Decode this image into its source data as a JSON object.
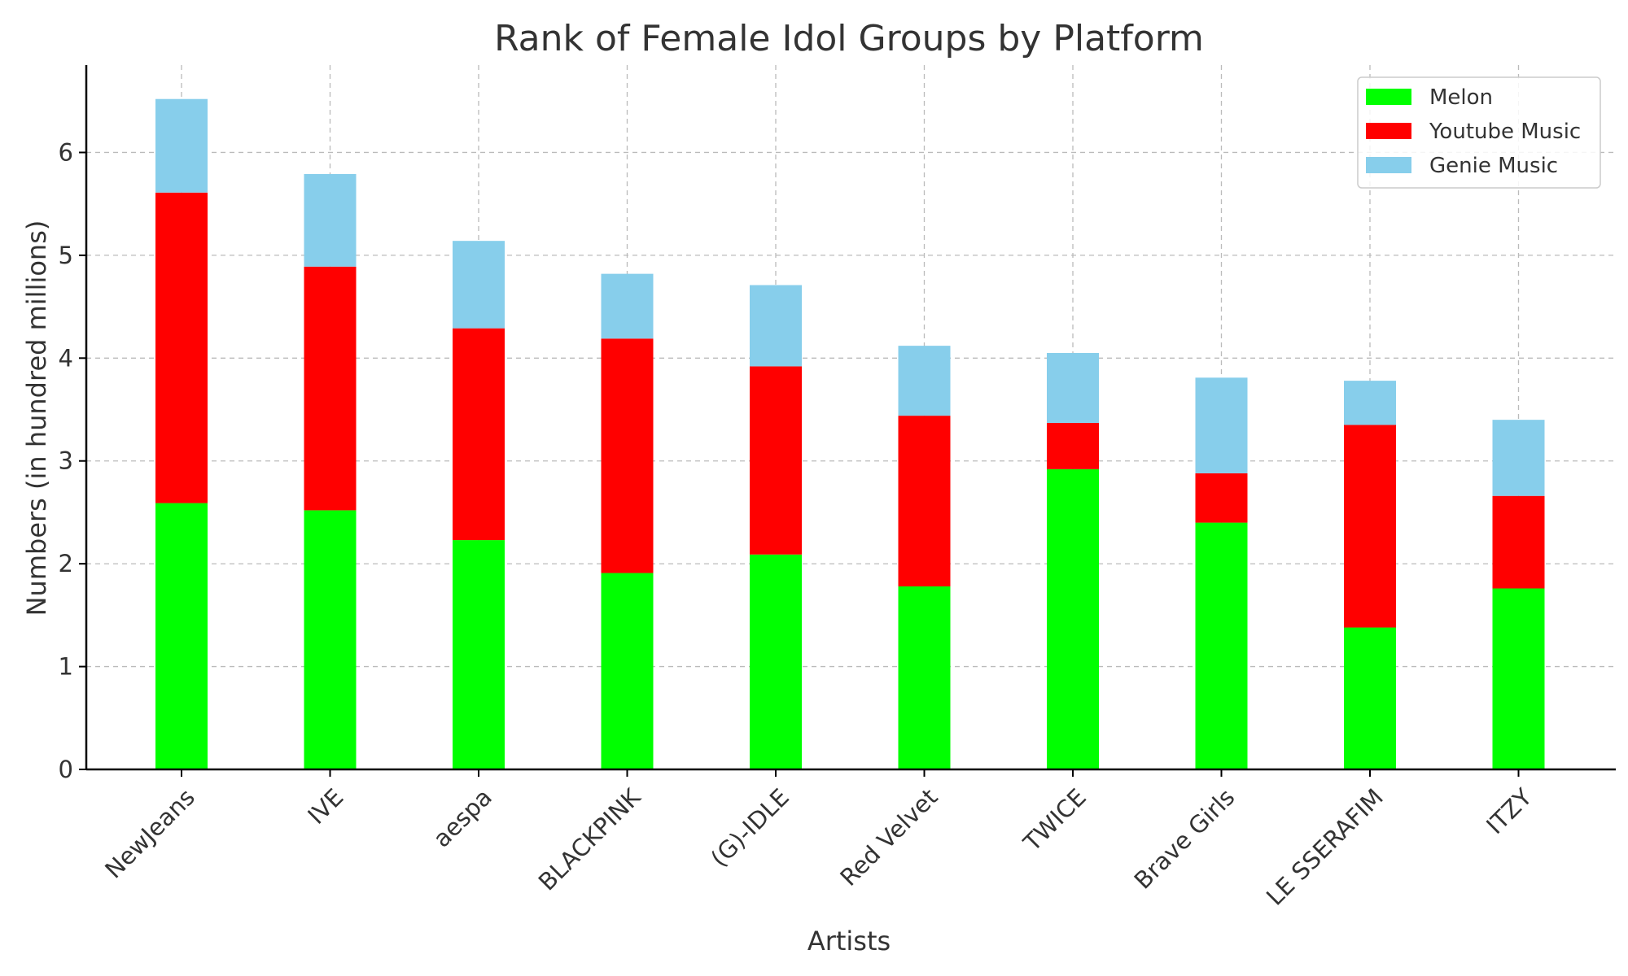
{
  "chart_data": {
    "type": "bar",
    "stacked": true,
    "title": "Rank of Female Idol Groups by Platform",
    "xlabel": "Artists",
    "ylabel": "Numbers (in hundred millions)",
    "ylim": [
      0,
      6.85
    ],
    "yticks": [
      "0",
      "1",
      "2",
      "3",
      "4",
      "5",
      "6"
    ],
    "grid": true,
    "legend_position": "top-right",
    "categories": [
      "NewJeans",
      "IVE",
      "aespa",
      "BLACKPINK",
      "(G)-IDLE",
      "Red Velvet",
      "TWICE",
      "Brave Girls",
      "LE SSERAFIM",
      "ITZY"
    ],
    "series": [
      {
        "name": "Melon",
        "color": "#00ff00",
        "values": [
          2.59,
          2.52,
          2.23,
          1.91,
          2.09,
          1.78,
          2.92,
          2.4,
          1.38,
          1.76
        ]
      },
      {
        "name": "Youtube Music",
        "color": "#ff0000",
        "values": [
          3.02,
          2.37,
          2.06,
          2.28,
          1.83,
          1.66,
          0.45,
          0.48,
          1.97,
          0.9
        ]
      },
      {
        "name": "Genie Music",
        "color": "#87ceeb",
        "values": [
          0.91,
          0.9,
          0.85,
          0.63,
          0.79,
          0.68,
          0.68,
          0.93,
          0.43,
          0.74
        ]
      }
    ]
  }
}
